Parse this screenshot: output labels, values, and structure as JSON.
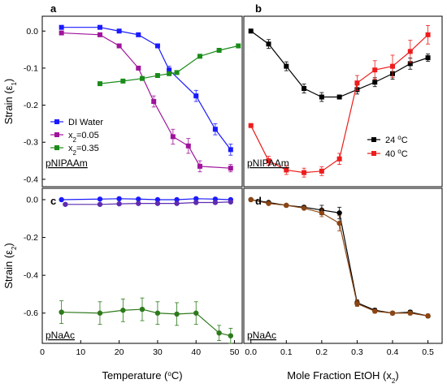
{
  "chart_data": [
    {
      "panel": "a",
      "type": "line",
      "inset_label": "pNIPAAm",
      "ylabel_main": "Strain (ε",
      "ylabel_sub": "1",
      "ylabel_end": ")",
      "xlim": [
        0,
        52
      ],
      "ylim": [
        -0.42,
        0.04
      ],
      "yticks": [
        "0.0",
        "-0.1",
        "-0.2",
        "-0.3",
        "-0.4"
      ],
      "ytick_values": [
        0.0,
        -0.1,
        -0.2,
        -0.3,
        -0.4
      ],
      "xticks": [],
      "legend_position": "bottom-left",
      "series": [
        {
          "name": "DI Water",
          "color": "#1a1aff",
          "x": [
            5,
            15,
            20,
            25,
            30,
            33,
            40,
            45,
            49
          ],
          "y": [
            0.01,
            0.01,
            0.0,
            -0.01,
            -0.04,
            -0.105,
            -0.175,
            -0.265,
            -0.32
          ],
          "err": [
            0,
            0,
            0,
            0,
            0,
            0.01,
            0.015,
            0.015,
            0.015
          ]
        },
        {
          "name_main": "x",
          "name_sub": "2",
          "name_end": "=0.05",
          "color": "#a0139b",
          "x": [
            5,
            15,
            20,
            25,
            29,
            34,
            38,
            41,
            49
          ],
          "y": [
            -0.005,
            -0.01,
            -0.04,
            -0.1,
            -0.19,
            -0.285,
            -0.31,
            -0.365,
            -0.37
          ],
          "err": [
            0,
            0,
            0,
            0,
            0.015,
            0.02,
            0.02,
            0.015,
            0.01
          ]
        },
        {
          "name_main": "x",
          "name_sub": "2",
          "name_end": "=0.35",
          "color": "#1a8c1a",
          "x": [
            15,
            21,
            26,
            30,
            33,
            35,
            41,
            46,
            51
          ],
          "y": [
            -0.142,
            -0.135,
            -0.128,
            -0.12,
            -0.115,
            -0.112,
            -0.068,
            -0.052,
            -0.04
          ],
          "err": [
            0,
            0,
            0,
            0,
            0,
            0,
            0,
            0,
            0
          ]
        }
      ]
    },
    {
      "panel": "b",
      "type": "line",
      "inset_label": "pNIPAAm",
      "xlim": [
        -0.02,
        0.54
      ],
      "ylim": [
        -0.42,
        0.04
      ],
      "legend_position": "bottom-right",
      "series": [
        {
          "name_main": "24 ",
          "name_sup": "o",
          "name_end": "C",
          "color": "#000000",
          "x": [
            0.0,
            0.05,
            0.1,
            0.15,
            0.2,
            0.25,
            0.3,
            0.35,
            0.4,
            0.45,
            0.5
          ],
          "y": [
            0.0,
            -0.035,
            -0.095,
            -0.155,
            -0.178,
            -0.178,
            -0.158,
            -0.138,
            -0.115,
            -0.088,
            -0.072
          ],
          "err": [
            0,
            0.012,
            0.012,
            0.012,
            0.012,
            0,
            0.012,
            0.012,
            0.015,
            0.015,
            0.01
          ]
        },
        {
          "name_main": "40 ",
          "name_sup": "o",
          "name_end": "C",
          "color": "#ee1c1c",
          "x": [
            0.0,
            0.05,
            0.1,
            0.15,
            0.2,
            0.25,
            0.3,
            0.35,
            0.4,
            0.45,
            0.5
          ],
          "y": [
            -0.255,
            -0.35,
            -0.375,
            -0.382,
            -0.378,
            -0.345,
            -0.14,
            -0.105,
            -0.095,
            -0.055,
            -0.01
          ],
          "err": [
            0,
            0.012,
            0.012,
            0.012,
            0.012,
            0.015,
            0.02,
            0.025,
            0.03,
            0.03,
            0.025
          ]
        }
      ]
    },
    {
      "panel": "c",
      "type": "line",
      "inset_label": "pNaAc",
      "ylabel_main": "Strain (ε",
      "ylabel_sub": "2",
      "ylabel_end": ")",
      "xlabel_main": "Temperature (",
      "xlabel_sup": "o",
      "xlabel_end": "C)",
      "xlim": [
        0,
        52
      ],
      "ylim": [
        -0.76,
        0.06
      ],
      "yticks": [
        "0.0",
        "-0.2",
        "-0.4",
        "-0.6"
      ],
      "ytick_values": [
        0.0,
        -0.2,
        -0.4,
        -0.6
      ],
      "xticks": [
        "0",
        "10",
        "20",
        "30",
        "40",
        "50"
      ],
      "xtick_values": [
        0,
        10,
        20,
        30,
        40,
        50
      ],
      "series": [
        {
          "color": "#1a1aff",
          "x": [
            5,
            15,
            20,
            25,
            30,
            35,
            40,
            45,
            49
          ],
          "y": [
            0.0,
            0.003,
            0.005,
            0.003,
            0.0,
            0.0,
            0.005,
            0.003,
            0.0
          ],
          "err": [
            0,
            0,
            0,
            0,
            0,
            0,
            0,
            0,
            0
          ]
        },
        {
          "color": "#5e2bb0",
          "x": [
            6,
            15,
            20,
            25,
            30,
            35,
            40,
            45,
            49
          ],
          "y": [
            -0.025,
            -0.025,
            -0.022,
            -0.02,
            -0.02,
            -0.02,
            -0.015,
            -0.015,
            -0.012
          ],
          "err": [
            0,
            0,
            0,
            0,
            0,
            0,
            0,
            0,
            0
          ]
        },
        {
          "color": "#2d7a1a",
          "x": [
            5,
            15,
            21,
            26,
            30,
            35,
            40,
            46,
            49
          ],
          "y": [
            -0.595,
            -0.6,
            -0.585,
            -0.58,
            -0.6,
            -0.605,
            -0.6,
            -0.705,
            -0.72
          ],
          "err": [
            0.06,
            0.06,
            0.06,
            0.06,
            0.06,
            0.06,
            0.06,
            0.04,
            0.04
          ]
        }
      ]
    },
    {
      "panel": "d",
      "type": "line",
      "inset_label": "pNaAc",
      "xlabel_main": "Mole Fraction EtOH (x",
      "xlabel_sub": "2",
      "xlabel_end": ")",
      "xlim": [
        -0.02,
        0.54
      ],
      "ylim": [
        -0.76,
        0.06
      ],
      "xticks": [
        "0.0",
        "0.1",
        "0.2",
        "0.3",
        "0.4",
        "0.5"
      ],
      "xtick_values": [
        0.0,
        0.1,
        0.2,
        0.3,
        0.4,
        0.5
      ],
      "series": [
        {
          "color": "#000000",
          "x": [
            0.0,
            0.05,
            0.1,
            0.15,
            0.2,
            0.25,
            0.3,
            0.35,
            0.4,
            0.45,
            0.5
          ],
          "y": [
            0.0,
            -0.015,
            -0.03,
            -0.04,
            -0.055,
            -0.07,
            -0.545,
            -0.585,
            -0.6,
            -0.595,
            -0.615
          ],
          "err": [
            0,
            0,
            0,
            0,
            0.025,
            0.03,
            0.015,
            0.01,
            0.01,
            0.01,
            0.01
          ]
        },
        {
          "color": "#8b4513",
          "x": [
            0.0,
            0.05,
            0.1,
            0.15,
            0.2,
            0.25,
            0.3,
            0.35,
            0.4,
            0.45,
            0.5
          ],
          "y": [
            0.0,
            -0.02,
            -0.03,
            -0.045,
            -0.07,
            -0.125,
            -0.55,
            -0.59,
            -0.6,
            -0.6,
            -0.615
          ],
          "err": [
            0,
            0,
            0,
            0,
            0.02,
            0.04,
            0.015,
            0.01,
            0.01,
            0.01,
            0.01
          ]
        }
      ]
    }
  ]
}
